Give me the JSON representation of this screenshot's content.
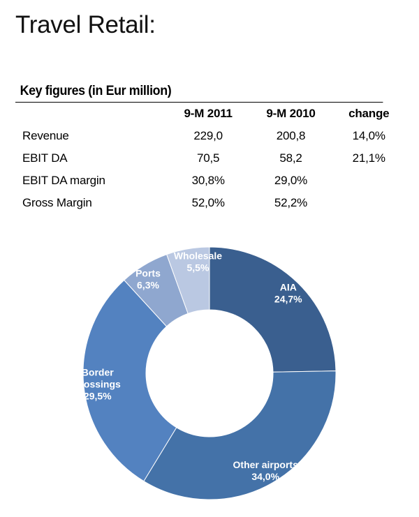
{
  "page": {
    "title": "Travel Retail:"
  },
  "table": {
    "caption": "Key figures (in Eur million)",
    "headers": [
      "",
      "9-M 2011",
      "9-M 2010",
      "change"
    ],
    "rows": [
      [
        "Revenue",
        "229,0",
        "200,8",
        "14,0%"
      ],
      [
        "EBIT DA",
        "70,5",
        "58,2",
        "21,1%"
      ],
      [
        "EBIT DA margin",
        "30,8%",
        "29,0%",
        ""
      ],
      [
        "Gross Margin",
        "52,0%",
        "52,2%",
        ""
      ]
    ]
  },
  "chart_data": {
    "type": "pie",
    "donut": true,
    "title": "",
    "slices": [
      {
        "name": "AIA",
        "value": 24.7,
        "label_lines": [
          "AIA",
          "24,7%"
        ],
        "color": "#3a5f8f"
      },
      {
        "name": "Other airports",
        "value": 34.0,
        "label_lines": [
          "Other airports",
          "34,0%"
        ],
        "color": "#4472a8"
      },
      {
        "name": "Border crossings",
        "value": 29.5,
        "label_lines": [
          "Border",
          "crossings",
          "29,5%"
        ],
        "color": "#5382c0"
      },
      {
        "name": "Ports",
        "value": 6.3,
        "label_lines": [
          "Ports",
          "6,3%"
        ],
        "color": "#8fa7cf"
      },
      {
        "name": "Wholesale",
        "value": 5.5,
        "label_lines": [
          "Wholesale",
          "5,5%"
        ],
        "color": "#bac8e2"
      }
    ],
    "start": "12 o'clock",
    "direction": "clockwise"
  }
}
